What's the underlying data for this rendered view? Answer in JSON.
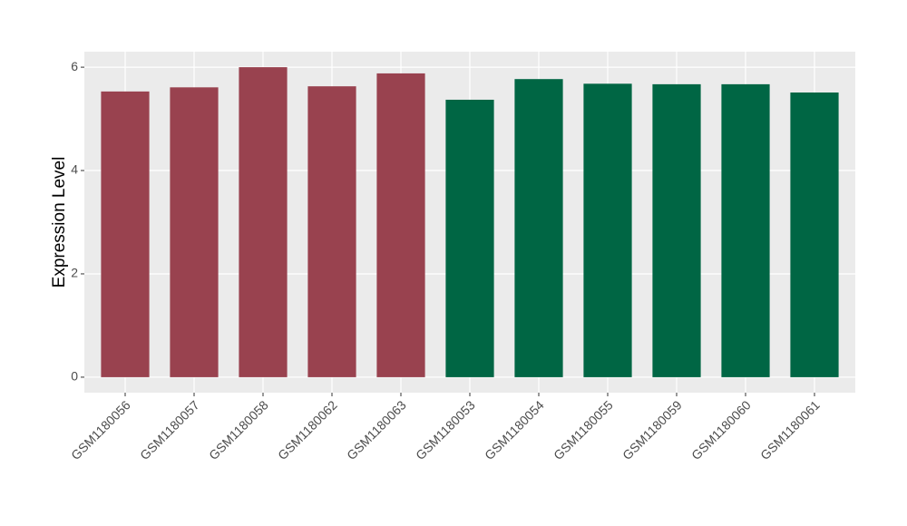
{
  "chart_data": {
    "type": "bar",
    "y_label": "Expression Level",
    "categories": [
      "GSM1180056",
      "GSM1180057",
      "GSM1180058",
      "GSM1180062",
      "GSM1180063",
      "GSM1180053",
      "GSM1180054",
      "GSM1180055",
      "GSM1180059",
      "GSM1180060",
      "GSM1180061"
    ],
    "values": [
      5.53,
      5.61,
      6.0,
      5.63,
      5.88,
      5.37,
      5.77,
      5.68,
      5.67,
      5.67,
      5.51
    ],
    "colors": [
      "#99424f",
      "#99424f",
      "#99424f",
      "#99424f",
      "#99424f",
      "#006644",
      "#006644",
      "#006644",
      "#006644",
      "#006644",
      "#006644"
    ],
    "ylim": [
      -0.3,
      6.3
    ],
    "yticks": [
      0,
      2,
      4,
      6
    ],
    "grid": true
  }
}
